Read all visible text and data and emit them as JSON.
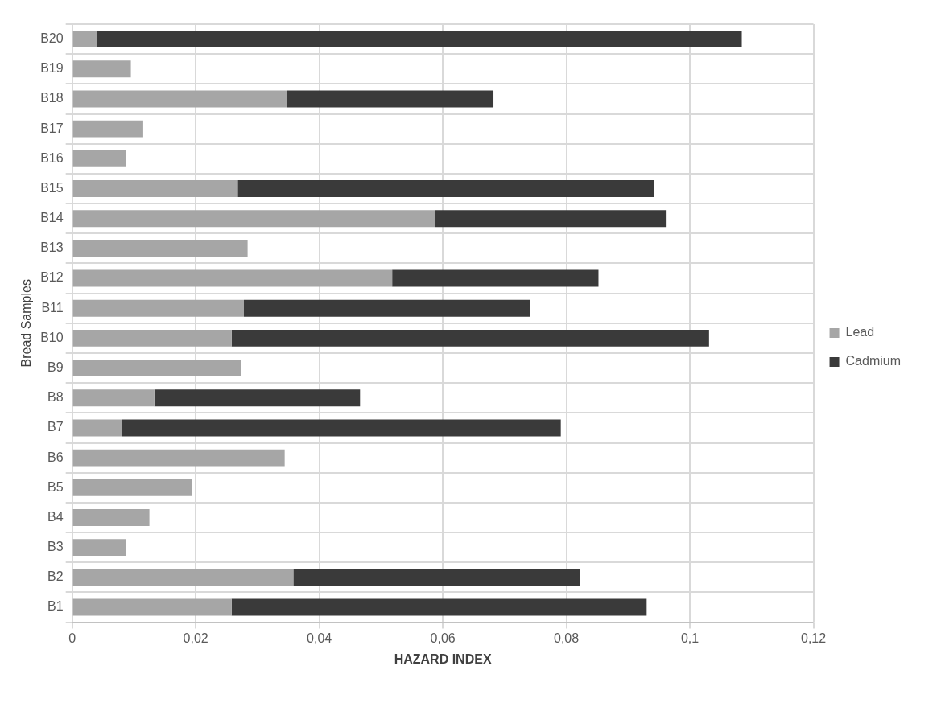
{
  "chart_data": {
    "type": "bar",
    "orientation": "horizontal",
    "stacked": true,
    "xlabel": "HAZARD INDEX",
    "ylabel": "Bread Samples",
    "categories": [
      "B20",
      "B19",
      "B18",
      "B17",
      "B16",
      "B15",
      "B14",
      "B13",
      "B12",
      "B11",
      "B10",
      "B9",
      "B8",
      "B7",
      "B6",
      "B5",
      "B4",
      "B3",
      "B2",
      "B1"
    ],
    "series": [
      {
        "name": "Lead",
        "color": "#a6a6a6",
        "values": [
          0.004,
          0.0095,
          0.0348,
          0.0115,
          0.0087,
          0.0268,
          0.0588,
          0.0284,
          0.0518,
          0.0278,
          0.0258,
          0.0274,
          0.0133,
          0.008,
          0.0344,
          0.0194,
          0.0125,
          0.0087,
          0.0358,
          0.0258
        ]
      },
      {
        "name": "Cadmium",
        "color": "#3a3a3a",
        "values": [
          0.1044,
          null,
          0.0334,
          null,
          null,
          0.0674,
          0.0373,
          null,
          0.0334,
          0.0463,
          0.0773,
          null,
          0.0333,
          0.0711,
          null,
          null,
          null,
          null,
          0.0464,
          0.0672
        ]
      }
    ],
    "xlim": [
      0,
      0.12
    ],
    "xticks": [
      0,
      {
        "value": 0.02,
        "label": "0,02"
      },
      {
        "value": 0.04,
        "label": "0,04"
      },
      {
        "value": 0.06,
        "label": "0,06"
      },
      {
        "value": 0.08,
        "label": "0,08"
      },
      {
        "value": 0.1,
        "label": "0,1"
      },
      {
        "value": 0.12,
        "label": "0,12"
      }
    ],
    "grid": true,
    "legend": "right"
  }
}
